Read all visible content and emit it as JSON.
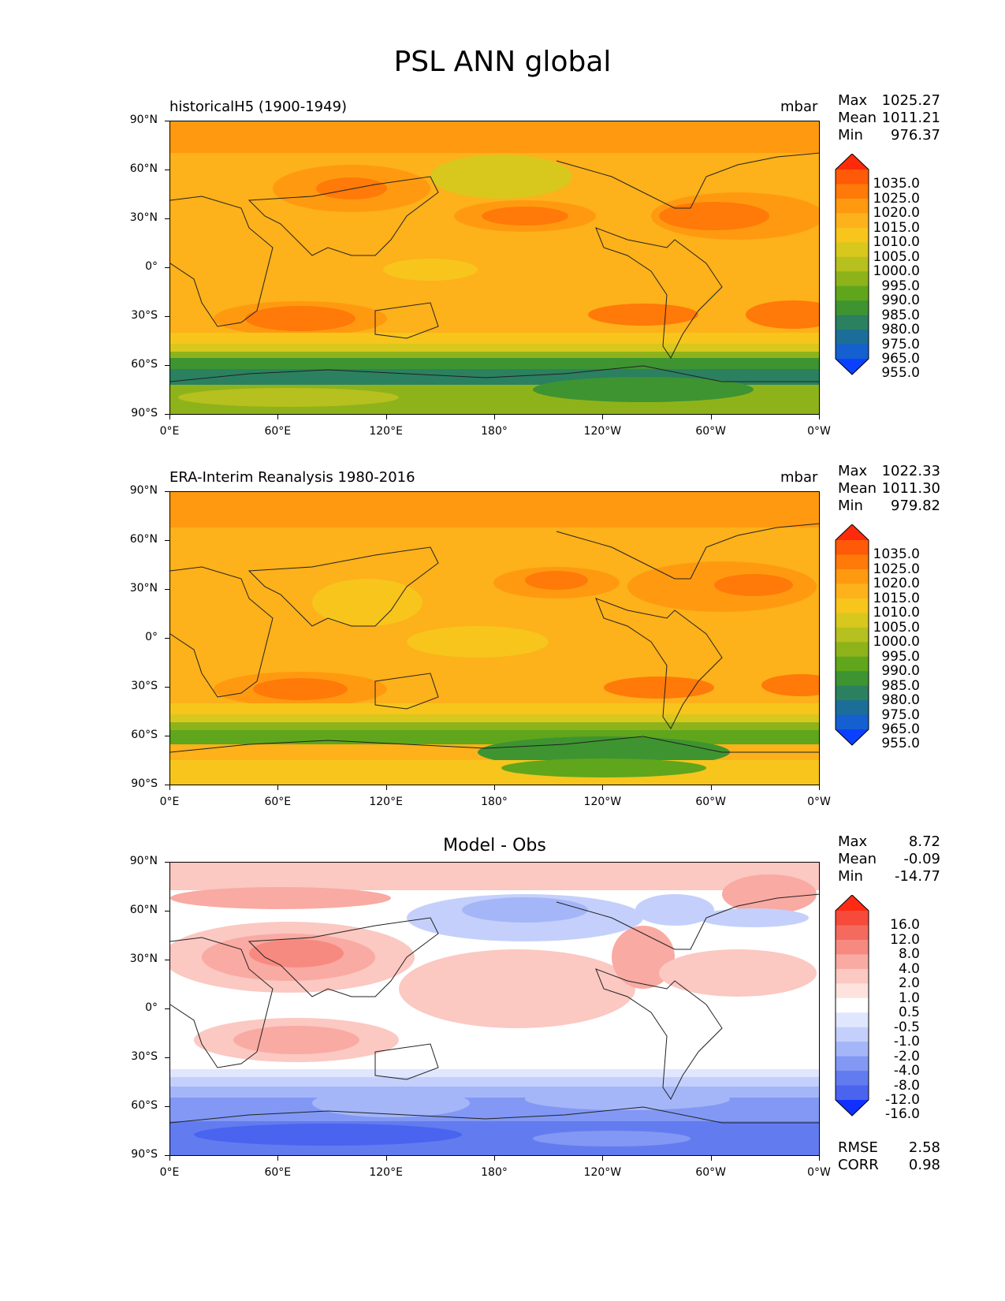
{
  "title": "PSL ANN global",
  "panels": [
    {
      "id": "model",
      "left_title": "historicalH5 (1900-1949)",
      "right_title": "mbar",
      "center_title": "",
      "stats": [
        {
          "label": "Max",
          "value": "1025.27"
        },
        {
          "label": "Mean",
          "value": "1011.21"
        },
        {
          "label": "Min",
          "value": "976.37"
        }
      ],
      "colorbar": {
        "labels": [
          "1035.0",
          "1025.0",
          "1020.0",
          "1015.0",
          "1010.0",
          "1005.0",
          "1000.0",
          "995.0",
          "990.0",
          "985.0",
          "980.0",
          "975.0",
          "965.0",
          "955.0"
        ],
        "colors": [
          "#ff2a0a",
          "#ff5a08",
          "#ff7a08",
          "#ff9a10",
          "#fdb11a",
          "#f7c51c",
          "#d8c81e",
          "#b6c01e",
          "#8eb31a",
          "#5fa61c",
          "#3e9430",
          "#2b8060",
          "#1c6e98",
          "#1460d0",
          "#0a40ff"
        ]
      }
    },
    {
      "id": "obs",
      "left_title": "ERA-Interim Reanalysis 1980-2016",
      "right_title": "mbar",
      "center_title": "",
      "stats": [
        {
          "label": "Max",
          "value": "1022.33"
        },
        {
          "label": "Mean",
          "value": "1011.30"
        },
        {
          "label": "Min",
          "value": "979.82"
        }
      ],
      "colorbar": {
        "labels": [
          "1035.0",
          "1025.0",
          "1020.0",
          "1015.0",
          "1010.0",
          "1005.0",
          "1000.0",
          "995.0",
          "990.0",
          "985.0",
          "980.0",
          "975.0",
          "965.0",
          "955.0"
        ],
        "colors": [
          "#ff2a0a",
          "#ff5a08",
          "#ff7a08",
          "#ff9a10",
          "#fdb11a",
          "#f7c51c",
          "#d8c81e",
          "#b6c01e",
          "#8eb31a",
          "#5fa61c",
          "#3e9430",
          "#2b8060",
          "#1c6e98",
          "#1460d0",
          "#0a40ff"
        ]
      }
    },
    {
      "id": "diff",
      "left_title": "",
      "right_title": "",
      "center_title": "Model - Obs",
      "stats": [
        {
          "label": "Max",
          "value": "8.72"
        },
        {
          "label": "Mean",
          "value": "-0.09"
        },
        {
          "label": "Min",
          "value": "-14.77"
        }
      ],
      "colorbar": {
        "labels": [
          "16.0",
          "12.0",
          "8.0",
          "4.0",
          "2.0",
          "1.0",
          "0.5",
          "-0.5",
          "-1.0",
          "-2.0",
          "-4.0",
          "-8.0",
          "-12.0",
          "-16.0"
        ],
        "colors": [
          "#ff2a14",
          "#f64a3a",
          "#f46a5e",
          "#f78a80",
          "#f9aaa2",
          "#fbc8c2",
          "#fde2de",
          "#ffffff",
          "#e0e6fd",
          "#c4d0fb",
          "#a4b6f8",
          "#8298f4",
          "#627cf0",
          "#4a64f0",
          "#1030ff"
        ]
      }
    }
  ],
  "axes": {
    "y_ticks": [
      "90°N",
      "60°N",
      "30°N",
      "0°",
      "30°S",
      "60°S",
      "90°S"
    ],
    "x_ticks": [
      "0°E",
      "60°E",
      "120°E",
      "180°",
      "120°W",
      "60°W",
      "0°W"
    ]
  },
  "metrics": [
    {
      "label": "RMSE",
      "value": "2.58"
    },
    {
      "label": "CORR",
      "value": "0.98"
    }
  ]
}
